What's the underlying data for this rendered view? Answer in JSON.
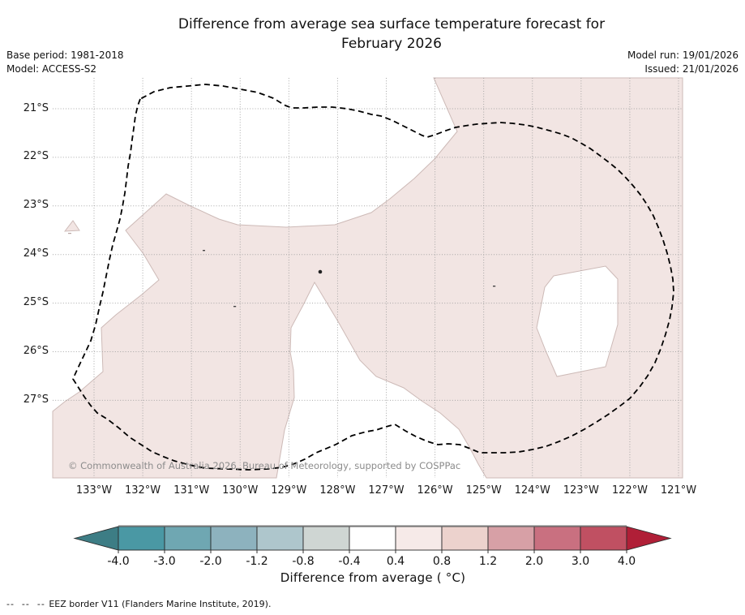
{
  "header": {
    "title_line1": "Difference from average sea surface temperature forecast for",
    "title_line2": "February 2026",
    "base_period": "Base period: 1981-2018",
    "model": "Model: ACCESS-S2",
    "model_run": "Model run: 19/01/2026",
    "issued": "Issued: 21/01/2026"
  },
  "map": {
    "copyright": "© Commonwealth of Australia 2026, Bureau of Meteorology, supported by COSPPac",
    "band_fill": "#f2e5e3",
    "band_edge": "#cdbab7",
    "hole_fill": "#ffffff",
    "grid_color": "#9a9a9a",
    "eez_border_color": "#000000",
    "copyright_color": "#8c8c8c"
  },
  "axes": {
    "lat_ticks": [
      "21°S",
      "22°S",
      "23°S",
      "24°S",
      "25°S",
      "26°S",
      "27°S"
    ],
    "lon_ticks": [
      "133°W",
      "132°W",
      "131°W",
      "130°W",
      "129°W",
      "128°W",
      "127°W",
      "126°W",
      "125°W",
      "124°W",
      "123°W",
      "122°W",
      "121°W"
    ]
  },
  "colorbar": {
    "title": "Difference from average ( °C)",
    "ticks": [
      "-4.0",
      "-3.0",
      "-2.0",
      "-1.2",
      "-0.8",
      "-0.4",
      "0.4",
      "0.8",
      "1.2",
      "2.0",
      "3.0",
      "4.0"
    ],
    "segment_colors": [
      "#4a98a4",
      "#6fa7b2",
      "#8db2be",
      "#aec6cc",
      "#cfd6d3",
      "#ffffff",
      "#f6eae8",
      "#ecd2cd",
      "#d7a0a6",
      "#c97080",
      "#c05062"
    ],
    "arrow_left_color": "#3d7d85",
    "arrow_right_color": "#b01f37",
    "outline_color": "#2b2b2b"
  },
  "footnote": {
    "dashes": "--  --  -- ",
    "text": "EEZ border V11 (Flanders Marine Institute, 2019)."
  },
  "chart_data": {
    "type": "heatmap",
    "variable": "Sea surface temperature difference from average (°C)",
    "forecast_month": "February 2026",
    "model": "ACCESS-S2",
    "base_period": "1981-2018",
    "model_run_date": "19/01/2026",
    "issued_date": "21/01/2026",
    "lon_ticks_deg_west": [
      133,
      132,
      131,
      130,
      129,
      128,
      127,
      126,
      125,
      124,
      123,
      122,
      121
    ],
    "lat_ticks_deg_south": [
      21,
      22,
      23,
      24,
      25,
      26,
      27
    ],
    "colorbar_bounds": [
      -4.0,
      -3.0,
      -2.0,
      -1.2,
      -0.8,
      -0.4,
      0.4,
      0.8,
      1.2,
      2.0,
      3.0,
      4.0
    ],
    "shaded_band_anomaly_c": "+0.4 to +0.8",
    "white_band_anomaly_c": "-0.4 to +0.4",
    "summary": "Most of the mapped ocean area (centre, east and south) is shaded in the +0.4 to +0.8 °C band; white areas in the north-west, a central wedge near 128-127°W below 24°S and a pocket near 123°W 25-26°S are within ±0.4 °C. A dashed EEZ boundary loops through the region."
  }
}
